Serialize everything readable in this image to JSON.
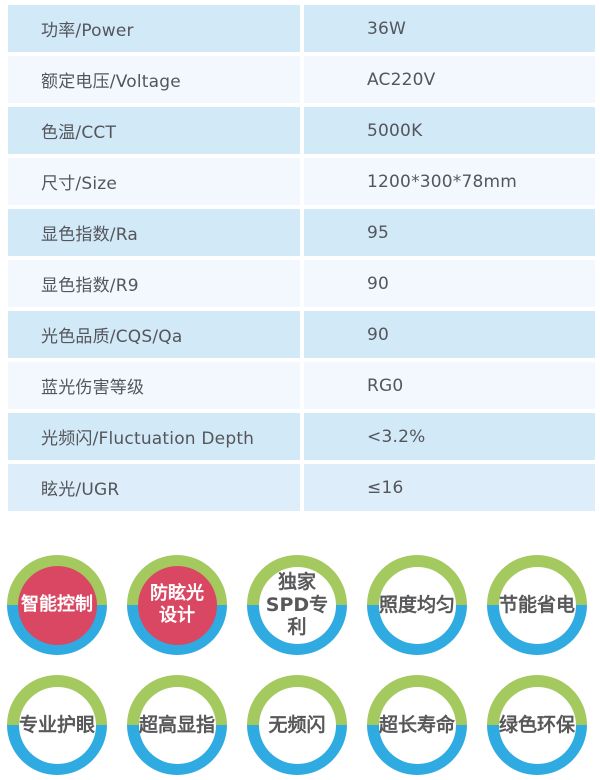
{
  "spec_table": {
    "rows": [
      {
        "label": "功率/Power",
        "value": "36W"
      },
      {
        "label": "额定电压/Voltage",
        "value": "AC220V"
      },
      {
        "label": "色温/CCT",
        "value": "5000K"
      },
      {
        "label": "尺寸/Size",
        "value": "1200*300*78mm"
      },
      {
        "label": "显色指数/Ra",
        "value": "95"
      },
      {
        "label": "显色指数/R9",
        "value": "90"
      },
      {
        "label": "光色品质/CQS/Qa",
        "value": "90"
      },
      {
        "label": "蓝光伤害等级",
        "value": "RG0"
      },
      {
        "label": "光频闪/Fluctuation Depth",
        "value": "<3.2%"
      },
      {
        "label": "眩光/UGR",
        "value": "≤16"
      }
    ]
  },
  "badges": {
    "row1": [
      {
        "label": "智能控制",
        "style": "red"
      },
      {
        "label": "防眩光\n设计",
        "style": "red"
      },
      {
        "label": "独家\nSPD专利",
        "style": "white"
      },
      {
        "label": "照度均匀",
        "style": "white"
      },
      {
        "label": "节能省电",
        "style": "white"
      }
    ],
    "row2": [
      {
        "label": "专业护眼",
        "style": "white"
      },
      {
        "label": "超高显指",
        "style": "white"
      },
      {
        "label": "无频闪",
        "style": "white"
      },
      {
        "label": "超长寿命",
        "style": "white"
      },
      {
        "label": "绿色环保",
        "style": "white"
      }
    ]
  },
  "colors": {
    "row_dark": "#d2e9f8",
    "row_light": "#f2f8fd",
    "row_last": "#ddeefa",
    "table_text": "#54565b",
    "ring_green": "#a3c95f",
    "ring_blue": "#2fabe1",
    "badge_red": "#d94762",
    "badge_text": "#58585a"
  }
}
